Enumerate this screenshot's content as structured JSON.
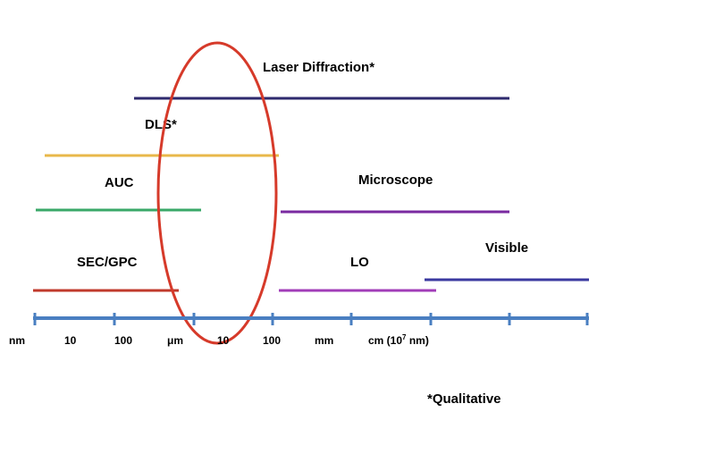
{
  "methods": [
    {
      "key": "laser",
      "label": "Laser Diffraction*",
      "color": "#2e2a6e"
    },
    {
      "key": "dls",
      "label": "DLS*",
      "color": "#e8b84a"
    },
    {
      "key": "auc",
      "label": "AUC",
      "color": "#3aa868"
    },
    {
      "key": "microscope",
      "label": "Microscope",
      "color": "#7a2aa0"
    },
    {
      "key": "sec",
      "label": "SEC/GPC",
      "color": "#c0392b"
    },
    {
      "key": "lo",
      "label": "LO",
      "color": "#a13cb8"
    },
    {
      "key": "visible",
      "label": "Visible",
      "color": "#3b3aa0"
    }
  ],
  "axis": {
    "color": "#4a7fc1",
    "ticks": {
      "nm": "nm",
      "t10a": "10",
      "t100a": "100",
      "um": "μm",
      "t10b": "10",
      "t100b": "100",
      "mm": "mm",
      "cm_pre": "cm (10",
      "cm_sup": "7",
      "cm_post": " nm)"
    }
  },
  "highlight_color": "#d63a2a",
  "footnote": "*Qualitative"
}
